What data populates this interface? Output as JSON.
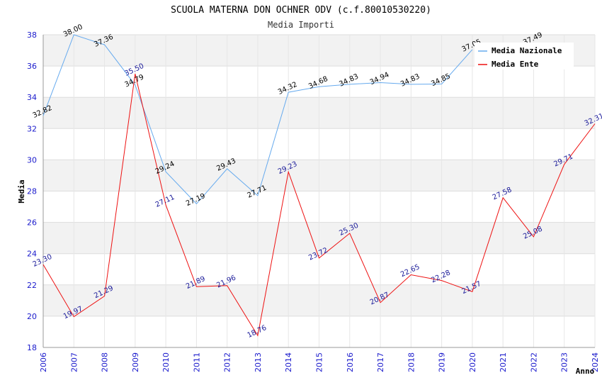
{
  "chart_data": {
    "type": "line",
    "title": "SCUOLA MATERNA DON OCHNER ODV (c.f.80010530220)",
    "subtitle": "Media Importi",
    "xlabel": "Anno",
    "ylabel": "Media",
    "ylim": [
      18,
      38
    ],
    "yticks": [
      18,
      20,
      22,
      24,
      26,
      28,
      30,
      32,
      34,
      36,
      38
    ],
    "grid": true,
    "legend_position": "top-right",
    "x": [
      "2006",
      "2007",
      "2008",
      "2009",
      "2010",
      "2011",
      "2012",
      "2013",
      "2014",
      "2015",
      "2016",
      "2017",
      "2018",
      "2019",
      "2020",
      "2021",
      "2022",
      "2023",
      "2024"
    ],
    "series": [
      {
        "name": "Media Nazionale",
        "color": "#66aaee",
        "label_color": "#000000",
        "values": [
          32.82,
          38.0,
          37.36,
          34.79,
          29.24,
          27.19,
          29.43,
          27.71,
          34.32,
          34.68,
          34.83,
          34.94,
          34.83,
          34.85,
          37.05,
          null,
          37.49,
          null,
          null
        ],
        "labels": [
          "32.82",
          "38.00",
          "37.36",
          "34.79",
          "29.24",
          "27.19",
          "29.43",
          "27.71",
          "34.32",
          "34.68",
          "34.83",
          "34.94",
          "34.83",
          "34.85",
          "37.05",
          "",
          "37.49",
          "",
          ""
        ]
      },
      {
        "name": "Media Ente",
        "color": "#ee1111",
        "label_color": "#1a1a99",
        "values": [
          23.3,
          19.97,
          21.29,
          35.5,
          27.11,
          21.89,
          21.96,
          18.76,
          29.23,
          23.72,
          25.3,
          20.87,
          22.65,
          22.28,
          21.57,
          27.58,
          25.08,
          29.71,
          32.31
        ],
        "labels": [
          "23.30",
          "19.97",
          "21.29",
          "35.50",
          "27.11",
          "21.89",
          "21.96",
          "18.76",
          "29.23",
          "23.72",
          "25.30",
          "20.87",
          "22.65",
          "22.28",
          "21.57",
          "27.58",
          "25.08",
          "29.71",
          "32.31"
        ]
      }
    ]
  }
}
